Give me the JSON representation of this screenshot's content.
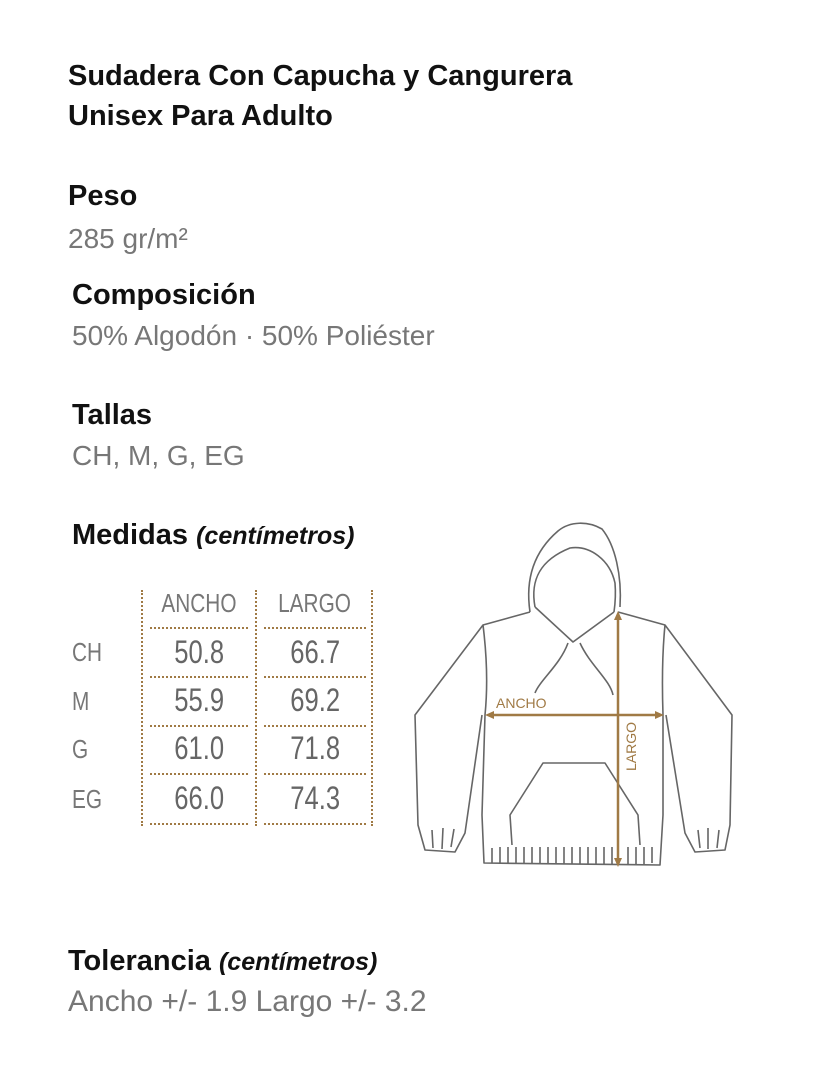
{
  "title": {
    "line1": "Sudadera Con Capucha y Cangurera",
    "line2": "Unisex Para Adulto"
  },
  "peso": {
    "label": "Peso",
    "value": "285 gr/m²"
  },
  "composicion": {
    "label": "Composición",
    "value": "50% Algodón · 50% Poliéster"
  },
  "tallas": {
    "label": "Tallas",
    "value": "CH, M, G, EG"
  },
  "medidas": {
    "label": "Medidas",
    "unit": "(centímetros)",
    "columns": [
      "ANCHO",
      "LARGO"
    ],
    "rows": [
      {
        "size": "CH",
        "ancho": "50.8",
        "largo": "66.7"
      },
      {
        "size": "M",
        "ancho": "55.9",
        "largo": "69.2"
      },
      {
        "size": "G",
        "ancho": "61.0",
        "largo": "71.8"
      },
      {
        "size": "EG",
        "ancho": "66.0",
        "largo": "74.3"
      }
    ]
  },
  "diagram": {
    "ancho_label": "ANCHO",
    "largo_label": "LARGO"
  },
  "tolerancia": {
    "label": "Tolerancia",
    "unit": "(centímetros)",
    "value": "Ancho +/- 1.9 Largo +/- 3.2"
  },
  "colors": {
    "accent": "#a07a45",
    "text": "#111111",
    "muted": "#777777",
    "outline": "#666666"
  }
}
